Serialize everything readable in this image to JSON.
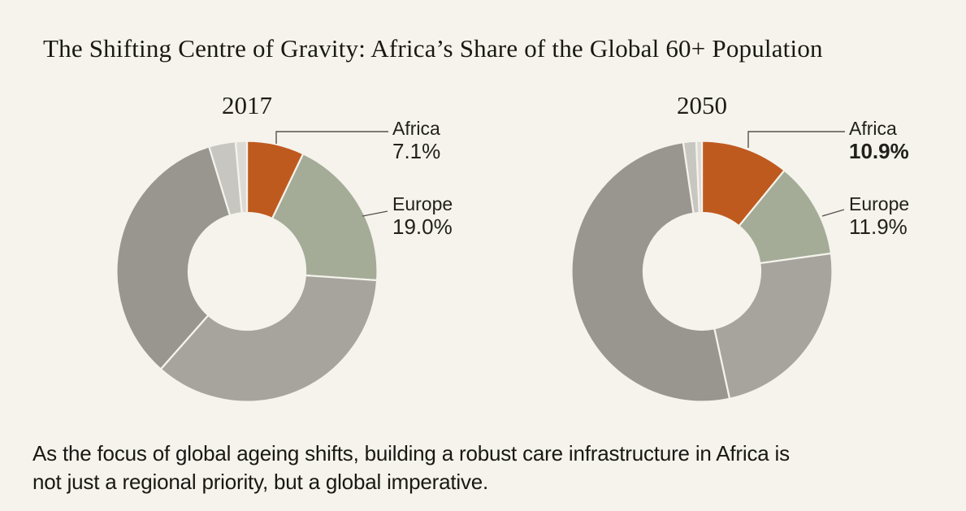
{
  "title": "The Shifting Centre of Gravity: Africa’s Share of the Global 60+ Population",
  "background_color": "#f5f3ec",
  "caption": {
    "line1": "As the focus of global ageing shifts, building a robust care infrastructure in Africa is",
    "line2": "not just a regional priority, but a global imperative."
  },
  "colors": {
    "africa_accent": "#bf5a1f",
    "europe_accent": "#a4ac98",
    "leader_line": "#54524c",
    "text": "#191813"
  },
  "chart_data": [
    {
      "type": "donut",
      "year_label": "2017",
      "legend_position": "right-callouts",
      "segments": [
        {
          "label": "Africa",
          "value": 7.1,
          "color": "#bf5a1f"
        },
        {
          "label": "Europe",
          "value": 19.0,
          "color": "#a4ac98"
        },
        {
          "label": "unlabeled-1",
          "value": 35.4,
          "color": "#a7a49e"
        },
        {
          "label": "unlabeled-2",
          "value": 33.8,
          "color": "#99968f"
        },
        {
          "label": "unlabeled-3",
          "value": 3.3,
          "color": "#c8c6c1"
        },
        {
          "label": "unlabeled-4",
          "value": 1.4,
          "color": "#dcdad5"
        }
      ],
      "callouts": [
        {
          "label": "Africa",
          "value_text": "7.1%",
          "bold_value": false
        },
        {
          "label": "Europe",
          "value_text": "19.0%",
          "bold_value": false
        }
      ]
    },
    {
      "type": "donut",
      "year_label": "2050",
      "legend_position": "right-callouts",
      "segments": [
        {
          "label": "Africa",
          "value": 10.9,
          "color": "#bf5a1f"
        },
        {
          "label": "Europe",
          "value": 11.9,
          "color": "#a4ac98"
        },
        {
          "label": "unlabeled-1",
          "value": 23.8,
          "color": "#a7a49e"
        },
        {
          "label": "unlabeled-2",
          "value": 51.1,
          "color": "#99968f"
        },
        {
          "label": "unlabeled-3",
          "value": 1.6,
          "color": "#c8c6c1"
        },
        {
          "label": "unlabeled-4",
          "value": 0.7,
          "color": "#dcdad5"
        }
      ],
      "callouts": [
        {
          "label": "Africa",
          "value_text": "10.9%",
          "bold_value": true
        },
        {
          "label": "Europe",
          "value_text": "11.9%",
          "bold_value": false
        }
      ]
    }
  ]
}
